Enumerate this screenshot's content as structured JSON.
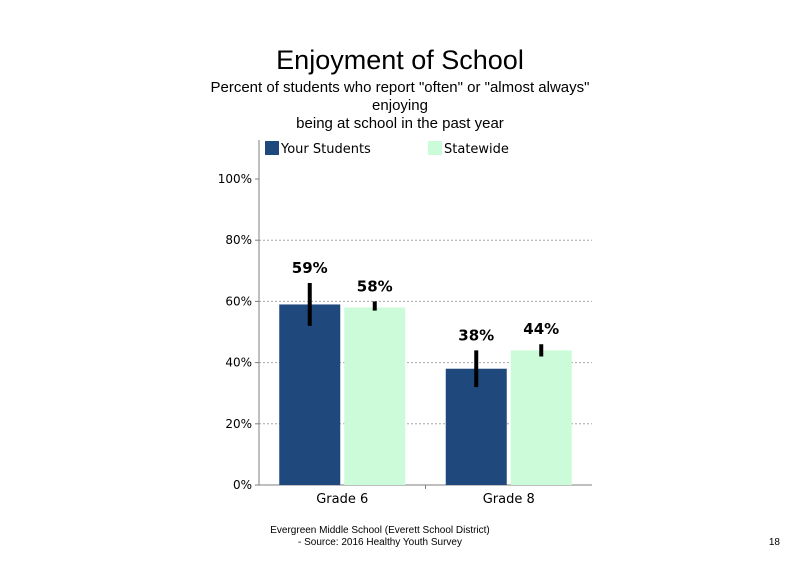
{
  "chart_data": {
    "type": "bar",
    "title": "Enjoyment of School",
    "subtitle_lines": [
      "Percent of students  who report \"often\" or \"almost always\"",
      "enjoying",
      "being at school in the past year"
    ],
    "categories": [
      "Grade 6",
      "Grade 8"
    ],
    "series": [
      {
        "name": "Your Students",
        "color": "#1f497d",
        "values": [
          59,
          38
        ],
        "labels": [
          "59%",
          "38%"
        ],
        "error_low": [
          52,
          32
        ],
        "error_high": [
          66,
          44
        ]
      },
      {
        "name": "Statewide",
        "color": "#ccfbd9",
        "values": [
          58,
          44
        ],
        "labels": [
          "58%",
          "44%"
        ],
        "error_low": [
          57,
          42
        ],
        "error_high": [
          60,
          46
        ]
      }
    ],
    "ylim": [
      0,
      100
    ],
    "yticks": [
      0,
      20,
      40,
      60,
      80,
      100
    ],
    "ytick_labels": [
      "0%",
      "20%",
      "40%",
      "60%",
      "80%",
      "100%"
    ],
    "gridlines": [
      20,
      40,
      60,
      80
    ],
    "legend_position": "top"
  },
  "footer": {
    "line1": "Evergreen Middle School (Everett School District)",
    "line2": "- Source: 2016 Healthy  Youth Survey"
  },
  "page_number": "18"
}
